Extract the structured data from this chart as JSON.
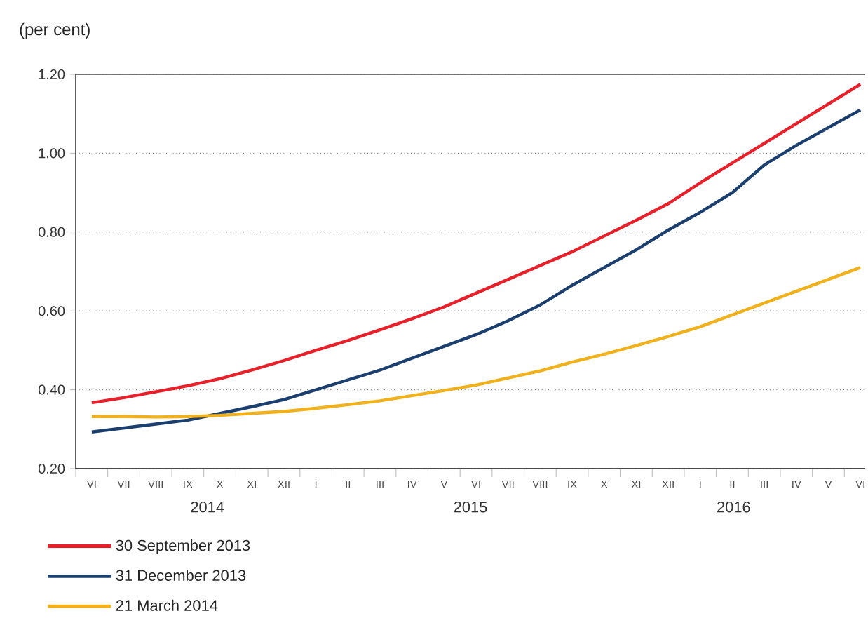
{
  "chart_data": {
    "type": "line",
    "ylabel": "(per cent)",
    "categories": [
      "VI",
      "VII",
      "VIII",
      "IX",
      "X",
      "XI",
      "XII",
      "I",
      "II",
      "III",
      "IV",
      "V",
      "VI",
      "VII",
      "VIII",
      "IX",
      "X",
      "XI",
      "XII",
      "I",
      "II",
      "III",
      "IV",
      "V",
      "VI"
    ],
    "series": [
      {
        "name": "30 September 2013",
        "color": "#e8202a",
        "values": [
          0.367,
          0.38,
          0.395,
          0.41,
          0.428,
          0.45,
          0.474,
          0.5,
          0.525,
          0.552,
          0.58,
          0.61,
          0.645,
          0.68,
          0.715,
          0.75,
          0.79,
          0.83,
          0.872,
          0.925,
          0.975,
          1.025,
          1.075,
          1.125,
          1.175
        ]
      },
      {
        "name": "31 December 2013",
        "color": "#1b3f6e",
        "values": [
          0.293,
          0.303,
          0.313,
          0.323,
          0.34,
          0.357,
          0.375,
          0.4,
          0.425,
          0.45,
          0.48,
          0.51,
          0.54,
          0.575,
          0.615,
          0.665,
          0.71,
          0.755,
          0.805,
          0.85,
          0.9,
          0.97,
          1.02,
          1.065,
          1.11
        ]
      },
      {
        "name": "21 March 2014",
        "color": "#f0b11c",
        "values": [
          0.332,
          0.332,
          0.331,
          0.332,
          0.335,
          0.34,
          0.345,
          0.353,
          0.362,
          0.372,
          0.385,
          0.398,
          0.412,
          0.43,
          0.448,
          0.47,
          0.49,
          0.512,
          0.535,
          0.56,
          0.59,
          0.62,
          0.65,
          0.68,
          0.71
        ]
      }
    ],
    "ylim": [
      0.2,
      1.2
    ],
    "yticks": [
      {
        "value": 0.2,
        "label": "0.20"
      },
      {
        "value": 0.4,
        "label": "0.40"
      },
      {
        "value": 0.6,
        "label": "0.60"
      },
      {
        "value": 0.8,
        "label": "0.80"
      },
      {
        "value": 1.0,
        "label": "1.00"
      },
      {
        "value": 1.2,
        "label": "1.20"
      }
    ],
    "annotations": [
      "2014",
      "2015",
      "2016"
    ],
    "grid": "y",
    "legend": "bottom left",
    "marker": "none",
    "line_style": "solid"
  }
}
